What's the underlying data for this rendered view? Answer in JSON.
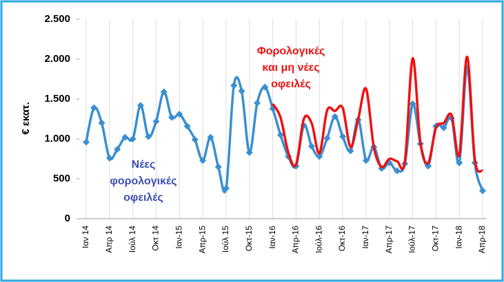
{
  "chart_data": {
    "type": "line",
    "y_label": "€ εκατ.",
    "categories": [
      "Ιαν 14",
      null,
      null,
      "Απρ 14",
      null,
      null,
      "Ιούλ 14",
      null,
      null,
      "Οκτ 14",
      null,
      null,
      "Ιαν-15",
      null,
      null,
      "Απρ-15",
      null,
      null,
      "Ιούλ 15",
      null,
      null,
      "Οκτ-15",
      null,
      null,
      "Ιαν-16",
      null,
      null,
      "Απρ-16",
      null,
      null,
      "Ιούλ-16",
      null,
      null,
      "Οκτ-16",
      null,
      null,
      "Ιαν-17",
      null,
      null,
      "Απρ-17",
      null,
      null,
      "Ιούλ-17",
      null,
      null,
      "Οκτ-17",
      null,
      null,
      "Ιαν-18",
      null,
      null,
      "Απρ-18"
    ],
    "series": [
      {
        "color": "#3a8fd0",
        "markers": true,
        "values": [
          960,
          1390,
          1200,
          760,
          870,
          1020,
          1000,
          1420,
          1030,
          1220,
          1590,
          1270,
          1310,
          1160,
          990,
          730,
          1020,
          650,
          380,
          1670,
          1600,
          830,
          1450,
          1650,
          1380,
          1050,
          780,
          660,
          1170,
          910,
          780,
          1010,
          1280,
          1030,
          850,
          1240,
          730,
          900,
          630,
          700,
          600,
          690,
          1440,
          940,
          660,
          1160,
          1140,
          1260,
          700,
          1890,
          700,
          350
        ]
      },
      {
        "color": "#ee1111",
        "markers": false,
        "values": [
          null,
          null,
          null,
          null,
          null,
          null,
          null,
          null,
          null,
          null,
          null,
          null,
          null,
          null,
          null,
          null,
          null,
          null,
          null,
          null,
          null,
          null,
          null,
          null,
          1440,
          1270,
          830,
          680,
          1250,
          1200,
          820,
          1360,
          1350,
          1390,
          900,
          1250,
          1630,
          900,
          650,
          750,
          720,
          720,
          2010,
          950,
          700,
          1140,
          1200,
          1300,
          800,
          2030,
          740,
          600
        ]
      }
    ],
    "ylim": [
      0,
      2500
    ],
    "yticks": [
      0,
      500,
      {
        "value": 1000,
        "label": "1.000"
      },
      {
        "value": 1500,
        "label": "1.500"
      },
      {
        "value": 2000,
        "label": "2.000"
      },
      {
        "value": 2500,
        "label": "2.500"
      }
    ],
    "annotations": [
      {
        "color": "#3b4fb0",
        "lines": [
          "Νέες",
          "φορολογικές",
          "οφειλές"
        ]
      },
      {
        "color": "#ee1111",
        "lines": [
          "Φορολογικές",
          "και μη νέες",
          "οφειλές"
        ]
      }
    ]
  }
}
